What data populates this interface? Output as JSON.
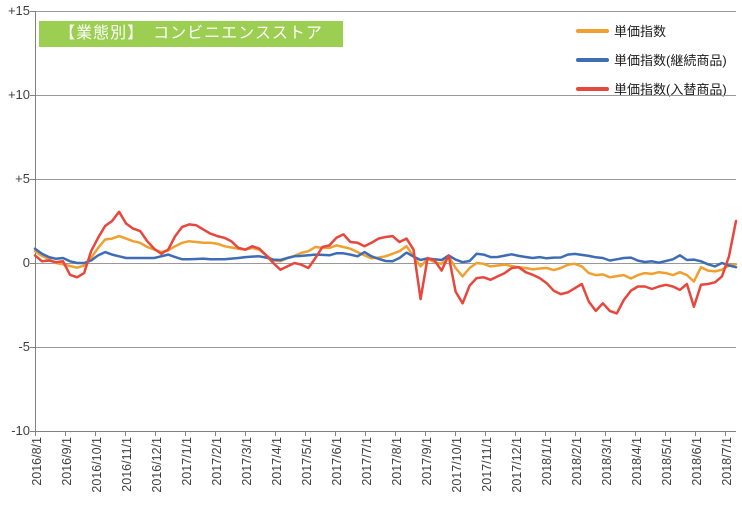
{
  "title": {
    "text": "【業態別】　コンビニエンスストア",
    "bg_color": "#9BCE51",
    "text_color": "#FFFFFF"
  },
  "axis_colors": {
    "gridline": "#999999",
    "axis_line": "#808080",
    "label_color": "#3F3F3F"
  },
  "chart_data": {
    "type": "line",
    "title": "【業態別】　コンビニエンスストア",
    "xlabel": "",
    "ylabel": "",
    "ylim": [
      -10,
      15
    ],
    "grid": true,
    "legend_position": "top-right",
    "y_ticks": [
      {
        "label": "+15",
        "value": 15
      },
      {
        "label": "+10",
        "value": 10
      },
      {
        "label": "+5",
        "value": 5
      },
      {
        "label": "0",
        "value": 0
      },
      {
        "label": "-5",
        "value": -5
      },
      {
        "label": "-10",
        "value": -10
      }
    ],
    "x_tick_labels": [
      "2016/8/1",
      "2016/9/1",
      "2016/10/1",
      "2016/11/1",
      "2016/12/1",
      "2017/1/1",
      "2017/2/1",
      "2017/3/1",
      "2017/4/1",
      "2017/5/1",
      "2017/6/1",
      "2017/7/1",
      "2017/8/1",
      "2017/9/1",
      "2017/10/1",
      "2017/11/1",
      "2017/12/1",
      "2018/1/1",
      "2018/2/1",
      "2018/3/1",
      "2018/4/1",
      "2018/5/1",
      "2018/6/1",
      "2018/7/1"
    ],
    "x_resolution": "weekly",
    "series": [
      {
        "name": "単価指数",
        "color": "#F0A02F",
        "values": [
          0.7,
          0.42,
          0.22,
          0.0,
          -0.08,
          -0.18,
          -0.28,
          -0.15,
          0.3,
          0.9,
          1.4,
          1.45,
          1.6,
          1.45,
          1.3,
          1.2,
          0.95,
          0.8,
          0.65,
          0.75,
          1.0,
          1.2,
          1.3,
          1.25,
          1.2,
          1.2,
          1.15,
          1.0,
          0.92,
          0.85,
          0.8,
          0.9,
          0.8,
          0.45,
          0.15,
          0.1,
          0.3,
          0.42,
          0.6,
          0.7,
          0.95,
          0.9,
          0.9,
          1.05,
          0.95,
          0.85,
          0.65,
          0.45,
          0.28,
          0.32,
          0.4,
          0.55,
          0.7,
          1.0,
          0.4,
          -0.2,
          0.25,
          0.05,
          -0.05,
          0.4,
          -0.3,
          -0.8,
          -0.3,
          0.0,
          -0.05,
          -0.2,
          -0.15,
          -0.1,
          -0.18,
          -0.25,
          -0.3,
          -0.38,
          -0.33,
          -0.3,
          -0.42,
          -0.3,
          -0.1,
          -0.05,
          -0.2,
          -0.6,
          -0.72,
          -0.68,
          -0.85,
          -0.78,
          -0.72,
          -0.92,
          -0.72,
          -0.6,
          -0.65,
          -0.55,
          -0.6,
          -0.72,
          -0.55,
          -0.72,
          -1.1,
          -0.25,
          -0.45,
          -0.5,
          -0.4,
          -0.15,
          -0.08
        ]
      },
      {
        "name": "単価指数(継続商品)",
        "color": "#3E6DB5",
        "values": [
          0.85,
          0.55,
          0.35,
          0.25,
          0.3,
          0.1,
          0.0,
          0.0,
          0.15,
          0.45,
          0.65,
          0.5,
          0.4,
          0.3,
          0.3,
          0.3,
          0.3,
          0.3,
          0.4,
          0.5,
          0.35,
          0.22,
          0.22,
          0.24,
          0.26,
          0.22,
          0.22,
          0.22,
          0.26,
          0.3,
          0.35,
          0.38,
          0.4,
          0.32,
          0.2,
          0.18,
          0.3,
          0.4,
          0.42,
          0.46,
          0.5,
          0.48,
          0.46,
          0.58,
          0.58,
          0.5,
          0.4,
          0.65,
          0.4,
          0.25,
          0.12,
          0.1,
          0.3,
          0.62,
          0.38,
          0.18,
          0.28,
          0.22,
          0.18,
          0.45,
          0.2,
          0.05,
          0.12,
          0.55,
          0.5,
          0.35,
          0.36,
          0.44,
          0.52,
          0.42,
          0.36,
          0.3,
          0.35,
          0.28,
          0.32,
          0.33,
          0.5,
          0.54,
          0.48,
          0.42,
          0.34,
          0.3,
          0.15,
          0.22,
          0.3,
          0.32,
          0.14,
          0.06,
          0.1,
          0.02,
          0.12,
          0.22,
          0.46,
          0.18,
          0.2,
          0.1,
          -0.08,
          -0.2,
          0.0,
          -0.15,
          -0.25
        ]
      },
      {
        "name": "単価指数(入替商品)",
        "color": "#E7473C",
        "values": [
          0.45,
          0.1,
          0.15,
          0.05,
          0.1,
          -0.7,
          -0.85,
          -0.6,
          0.7,
          1.5,
          2.2,
          2.5,
          3.05,
          2.35,
          2.05,
          1.9,
          1.3,
          0.85,
          0.55,
          0.8,
          1.6,
          2.15,
          2.3,
          2.25,
          2.0,
          1.75,
          1.6,
          1.5,
          1.3,
          0.9,
          0.8,
          1.0,
          0.85,
          0.45,
          0.0,
          -0.4,
          -0.2,
          0.0,
          -0.1,
          -0.3,
          0.3,
          0.95,
          1.05,
          1.5,
          1.7,
          1.25,
          1.2,
          1.0,
          1.2,
          1.45,
          1.55,
          1.6,
          1.25,
          1.45,
          0.8,
          -2.15,
          0.3,
          0.15,
          -0.45,
          0.45,
          -1.7,
          -2.4,
          -1.35,
          -0.9,
          -0.85,
          -1.0,
          -0.8,
          -0.6,
          -0.3,
          -0.25,
          -0.55,
          -0.7,
          -0.9,
          -1.2,
          -1.65,
          -1.85,
          -1.75,
          -1.5,
          -1.25,
          -2.3,
          -2.85,
          -2.4,
          -2.85,
          -3.0,
          -2.2,
          -1.65,
          -1.4,
          -1.4,
          -1.55,
          -1.4,
          -1.3,
          -1.4,
          -1.6,
          -1.25,
          -2.6,
          -1.3,
          -1.25,
          -1.15,
          -0.8,
          0.4,
          2.5
        ]
      }
    ]
  }
}
